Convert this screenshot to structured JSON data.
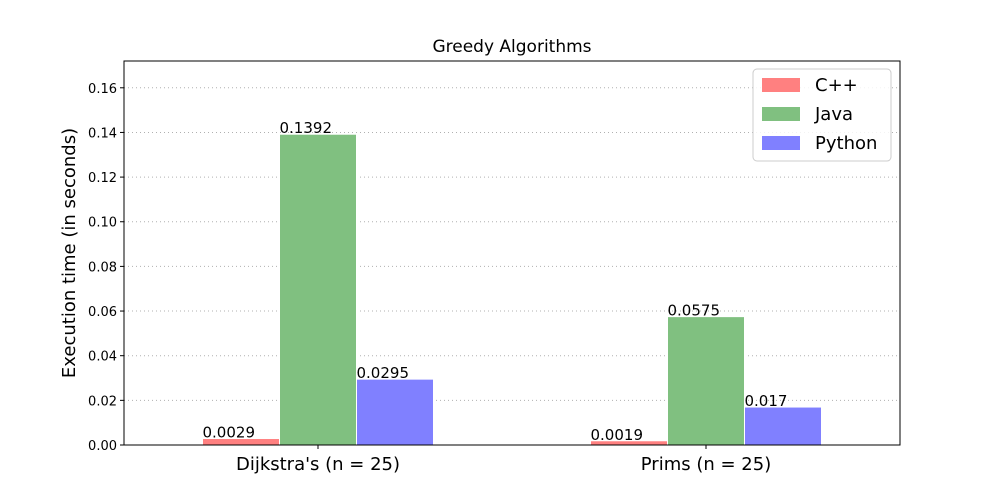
{
  "chart_data": {
    "type": "bar",
    "title": "Greedy Algorithms",
    "xlabel": "",
    "ylabel": "Execution time (in seconds)",
    "categories": [
      "Dijkstra's (n = 25)",
      "Prims (n = 25)"
    ],
    "series": [
      {
        "name": "C++",
        "values": [
          0.0029,
          0.0019
        ],
        "labels": [
          "0.0029",
          "0.0019"
        ],
        "color": "#ff8080"
      },
      {
        "name": "Java",
        "values": [
          0.1392,
          0.0575
        ],
        "labels": [
          "0.1392",
          "0.0575"
        ],
        "color": "#80c080"
      },
      {
        "name": "Python",
        "values": [
          0.0295,
          0.017
        ],
        "labels": [
          "0.0295",
          "0.017"
        ],
        "color": "#8080ff"
      }
    ],
    "ylim": [
      0,
      0.172
    ],
    "yticks": [
      "0.00",
      "0.02",
      "0.04",
      "0.06",
      "0.08",
      "0.10",
      "0.12",
      "0.14",
      "0.16"
    ],
    "grid": "y-dotted",
    "legend_position": "top-right"
  }
}
